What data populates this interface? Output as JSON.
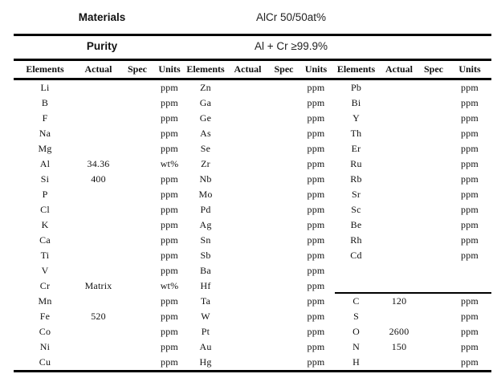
{
  "meta": {
    "materials_label": "Materials",
    "materials_value": "AlCr 50/50at%",
    "purity_label": "Purity",
    "purity_value": "Al + Cr ≥99.9%"
  },
  "table": {
    "column_headers": [
      "Elements",
      "Actual",
      "Spec",
      "Units"
    ],
    "groups": [
      {
        "name": "elements-column-1",
        "rows": [
          [
            "Li",
            "",
            "",
            "ppm"
          ],
          [
            "B",
            "",
            "",
            "ppm"
          ],
          [
            "F",
            "",
            "",
            "ppm"
          ],
          [
            "Na",
            "",
            "",
            "ppm"
          ],
          [
            "Mg",
            "",
            "",
            "ppm"
          ],
          [
            "Al",
            "34.36",
            "",
            "wt%"
          ],
          [
            "Si",
            "400",
            "",
            "ppm"
          ],
          [
            "P",
            "",
            "",
            "ppm"
          ],
          [
            "Cl",
            "",
            "",
            "ppm"
          ],
          [
            "K",
            "",
            "",
            "ppm"
          ],
          [
            "Ca",
            "",
            "",
            "ppm"
          ],
          [
            "Ti",
            "",
            "",
            "ppm"
          ],
          [
            "V",
            "",
            "",
            "ppm"
          ],
          [
            "Cr",
            "Matrix",
            "",
            "wt%"
          ],
          [
            "Mn",
            "",
            "",
            "ppm"
          ],
          [
            "Fe",
            "520",
            "",
            "ppm"
          ],
          [
            "Co",
            "",
            "",
            "ppm"
          ],
          [
            "Ni",
            "",
            "",
            "ppm"
          ],
          [
            "Cu",
            "",
            "",
            "ppm"
          ]
        ]
      },
      {
        "name": "elements-column-2",
        "rows": [
          [
            "Zn",
            "",
            "",
            "ppm"
          ],
          [
            "Ga",
            "",
            "",
            "ppm"
          ],
          [
            "Ge",
            "",
            "",
            "ppm"
          ],
          [
            "As",
            "",
            "",
            "ppm"
          ],
          [
            "Se",
            "",
            "",
            "ppm"
          ],
          [
            "Zr",
            "",
            "",
            "ppm"
          ],
          [
            "Nb",
            "",
            "",
            "ppm"
          ],
          [
            "Mo",
            "",
            "",
            "ppm"
          ],
          [
            "Pd",
            "",
            "",
            "ppm"
          ],
          [
            "Ag",
            "",
            "",
            "ppm"
          ],
          [
            "Sn",
            "",
            "",
            "ppm"
          ],
          [
            "Sb",
            "",
            "",
            "ppm"
          ],
          [
            "Ba",
            "",
            "",
            "ppm"
          ],
          [
            "Hf",
            "",
            "",
            "ppm"
          ],
          [
            "Ta",
            "",
            "",
            "ppm"
          ],
          [
            "W",
            "",
            "",
            "ppm"
          ],
          [
            "Pt",
            "",
            "",
            "ppm"
          ],
          [
            "Au",
            "",
            "",
            "ppm"
          ],
          [
            "Hg",
            "",
            "",
            "ppm"
          ]
        ]
      },
      {
        "name": "elements-column-3-and-gases",
        "rows": [
          [
            "Pb",
            "",
            "",
            "ppm"
          ],
          [
            "Bi",
            "",
            "",
            "ppm"
          ],
          [
            "Y",
            "",
            "",
            "ppm"
          ],
          [
            "Th",
            "",
            "",
            "ppm"
          ],
          [
            "Er",
            "",
            "",
            "ppm"
          ],
          [
            "Ru",
            "",
            "",
            "ppm"
          ],
          [
            "Rb",
            "",
            "",
            "ppm"
          ],
          [
            "Sr",
            "",
            "",
            "ppm"
          ],
          [
            "Sc",
            "",
            "",
            "ppm"
          ],
          [
            "Be",
            "",
            "",
            "ppm"
          ],
          [
            "Rh",
            "",
            "",
            "ppm"
          ],
          [
            "Cd",
            "",
            "",
            "ppm"
          ],
          [
            "",
            "",
            "",
            ""
          ],
          [
            "",
            "",
            "",
            ""
          ],
          [
            "C",
            "120",
            "",
            "ppm"
          ],
          [
            "S",
            "",
            "",
            "ppm"
          ],
          [
            "O",
            "2600",
            "",
            "ppm"
          ],
          [
            "N",
            "150",
            "",
            "ppm"
          ],
          [
            "H",
            "",
            "",
            "ppm"
          ]
        ]
      }
    ]
  },
  "colors": {
    "rule": "#000000",
    "text": "#111111",
    "background": "#ffffff"
  }
}
